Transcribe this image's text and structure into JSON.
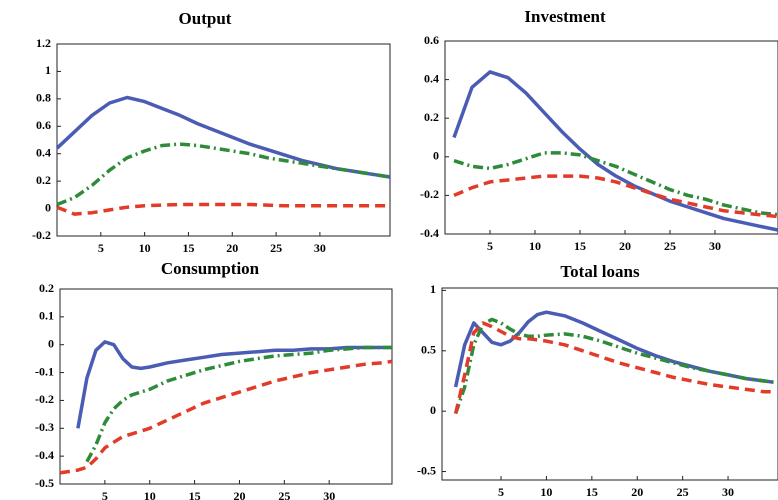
{
  "chart_data": [
    {
      "type": "line",
      "title": "Output",
      "x": [
        0,
        2,
        4,
        6,
        8,
        10,
        12,
        14,
        16,
        18,
        20,
        22,
        24,
        26,
        28,
        30,
        32,
        34,
        36,
        38
      ],
      "xlim": [
        0,
        38
      ],
      "ylim": [
        -0.2,
        1.2
      ],
      "xticks": [
        5,
        10,
        15,
        20,
        25,
        30
      ],
      "yticks": [
        -0.2,
        0,
        0.2,
        0.4,
        0.6,
        0.8,
        1,
        1.2
      ],
      "series": [
        {
          "color": "#4a5cb4",
          "style": "solid",
          "values": [
            0.44,
            0.56,
            0.68,
            0.77,
            0.81,
            0.78,
            0.73,
            0.68,
            0.62,
            0.57,
            0.52,
            0.47,
            0.43,
            0.39,
            0.35,
            0.32,
            0.29,
            0.27,
            0.25,
            0.23
          ]
        },
        {
          "color": "#2e8b3a",
          "style": "dashdot",
          "values": [
            0.03,
            0.08,
            0.17,
            0.28,
            0.37,
            0.42,
            0.46,
            0.47,
            0.46,
            0.44,
            0.42,
            0.4,
            0.37,
            0.35,
            0.33,
            0.31,
            0.29,
            0.27,
            0.25,
            0.23
          ]
        },
        {
          "color": "#e23b2a",
          "style": "dashed",
          "values": [
            0.01,
            -0.04,
            -0.03,
            -0.01,
            0.01,
            0.02,
            0.025,
            0.03,
            0.03,
            0.03,
            0.03,
            0.03,
            0.025,
            0.02,
            0.02,
            0.02,
            0.02,
            0.02,
            0.02,
            0.02
          ]
        }
      ]
    },
    {
      "type": "line",
      "title": "Investment",
      "x": [
        1,
        3,
        5,
        7,
        9,
        11,
        13,
        15,
        17,
        19,
        21,
        23,
        25,
        27,
        29,
        31,
        33,
        35,
        37
      ],
      "xlim": [
        0,
        37
      ],
      "ylim": [
        -0.4,
        0.6
      ],
      "xticks": [
        5,
        10,
        15,
        20,
        25,
        30
      ],
      "yticks": [
        -0.4,
        -0.2,
        0,
        0.2,
        0.4,
        0.6
      ],
      "series": [
        {
          "color": "#4a5cb4",
          "style": "solid",
          "values": [
            0.1,
            0.36,
            0.44,
            0.41,
            0.33,
            0.23,
            0.13,
            0.04,
            -0.04,
            -0.1,
            -0.15,
            -0.19,
            -0.23,
            -0.26,
            -0.29,
            -0.32,
            -0.34,
            -0.36,
            -0.38
          ]
        },
        {
          "color": "#2e8b3a",
          "style": "dashdot",
          "values": [
            -0.02,
            -0.05,
            -0.06,
            -0.04,
            -0.01,
            0.02,
            0.02,
            0.01,
            -0.02,
            -0.05,
            -0.09,
            -0.13,
            -0.17,
            -0.2,
            -0.22,
            -0.25,
            -0.27,
            -0.29,
            -0.3
          ]
        },
        {
          "color": "#e23b2a",
          "style": "dashed",
          "values": [
            -0.2,
            -0.16,
            -0.13,
            -0.12,
            -0.11,
            -0.1,
            -0.1,
            -0.1,
            -0.11,
            -0.13,
            -0.16,
            -0.19,
            -0.22,
            -0.24,
            -0.26,
            -0.28,
            -0.29,
            -0.3,
            -0.31
          ]
        }
      ]
    },
    {
      "type": "line",
      "title": "Consumption",
      "x": [
        0,
        1,
        2,
        3,
        4,
        5,
        6,
        7,
        8,
        9,
        10,
        12,
        14,
        16,
        18,
        20,
        22,
        24,
        26,
        28,
        30,
        32,
        34,
        36,
        37
      ],
      "xlim": [
        0,
        37
      ],
      "ylim": [
        -0.5,
        0.2
      ],
      "xticks": [
        5,
        10,
        15,
        20,
        25,
        30
      ],
      "yticks": [
        -0.5,
        -0.4,
        -0.3,
        -0.2,
        -0.1,
        0,
        0.1,
        0.2
      ],
      "series": [
        {
          "color": "#4a5cb4",
          "style": "solid",
          "values": [
            null,
            null,
            -0.3,
            -0.12,
            -0.02,
            0.01,
            0,
            -0.05,
            -0.08,
            -0.085,
            -0.08,
            -0.065,
            -0.055,
            -0.045,
            -0.035,
            -0.03,
            -0.025,
            -0.02,
            -0.02,
            -0.015,
            -0.015,
            -0.01,
            -0.01,
            -0.01,
            -0.01
          ]
        },
        {
          "color": "#2e8b3a",
          "style": "dashdot",
          "values": [
            null,
            null,
            null,
            -0.42,
            -0.36,
            -0.28,
            -0.23,
            -0.2,
            -0.18,
            -0.17,
            -0.16,
            -0.13,
            -0.11,
            -0.09,
            -0.075,
            -0.06,
            -0.05,
            -0.04,
            -0.035,
            -0.03,
            -0.02,
            -0.015,
            -0.01,
            -0.01,
            -0.01
          ]
        },
        {
          "color": "#e23b2a",
          "style": "dashed",
          "values": [
            -0.46,
            -0.455,
            -0.45,
            -0.44,
            -0.41,
            -0.37,
            -0.35,
            -0.33,
            -0.32,
            -0.31,
            -0.3,
            -0.27,
            -0.24,
            -0.21,
            -0.19,
            -0.17,
            -0.15,
            -0.13,
            -0.115,
            -0.1,
            -0.09,
            -0.08,
            -0.07,
            -0.065,
            -0.06
          ]
        }
      ]
    },
    {
      "type": "line",
      "title": "Total loans",
      "x": [
        0,
        1,
        2,
        3,
        4,
        5,
        6,
        7,
        8,
        9,
        10,
        12,
        14,
        16,
        18,
        20,
        22,
        24,
        26,
        28,
        30,
        32,
        34,
        35
      ],
      "xlim": [
        -1.5,
        35.5
      ],
      "ylim": [
        -0.57,
        1.02
      ],
      "xticks": [
        5,
        10,
        15,
        20,
        25,
        30
      ],
      "yticks": [
        -0.5,
        0,
        0.5,
        1
      ],
      "series": [
        {
          "color": "#4a5cb4",
          "style": "solid",
          "values": [
            0.2,
            0.55,
            0.73,
            0.65,
            0.57,
            0.55,
            0.58,
            0.65,
            0.74,
            0.8,
            0.82,
            0.79,
            0.73,
            0.66,
            0.59,
            0.52,
            0.46,
            0.41,
            0.37,
            0.33,
            0.3,
            0.27,
            0.25,
            0.24
          ]
        },
        {
          "color": "#2e8b3a",
          "style": "dashdot",
          "values": [
            -0.02,
            0.2,
            0.55,
            0.72,
            0.76,
            0.73,
            0.68,
            0.64,
            0.62,
            0.62,
            0.63,
            0.64,
            0.62,
            0.58,
            0.53,
            0.48,
            0.44,
            0.4,
            0.36,
            0.33,
            0.3,
            0.27,
            0.25,
            0.24
          ]
        },
        {
          "color": "#e23b2a",
          "style": "dashed",
          "values": [
            -0.02,
            0.3,
            0.65,
            0.73,
            0.7,
            0.66,
            0.62,
            0.6,
            0.6,
            0.59,
            0.58,
            0.55,
            0.5,
            0.45,
            0.4,
            0.36,
            0.32,
            0.28,
            0.25,
            0.22,
            0.2,
            0.18,
            0.16,
            0.16
          ]
        }
      ]
    }
  ]
}
